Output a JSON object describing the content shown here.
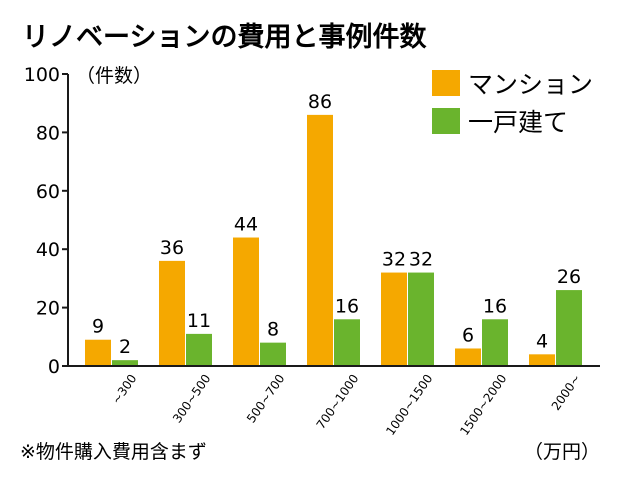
{
  "chart_data": {
    "type": "bar",
    "title": "リノベーションの費用と事例件数",
    "y_unit_label": "（件数）",
    "x_unit_label": "（万円）",
    "note": "※物件購入費用含まず",
    "categories": [
      "~300",
      "300~500",
      "500~700",
      "700~1000",
      "1000~1500",
      "1500~2000",
      "2000~"
    ],
    "series": [
      {
        "name": "マンション",
        "color": "#f5a800",
        "values": [
          9,
          36,
          44,
          86,
          32,
          6,
          4
        ]
      },
      {
        "name": "一戸建て",
        "color": "#6ab42d",
        "values": [
          2,
          11,
          8,
          16,
          32,
          16,
          26
        ]
      }
    ],
    "ylim": [
      0,
      100
    ],
    "yticks": [
      0,
      20,
      40,
      60,
      80,
      100
    ],
    "grid": false,
    "legend_position": "top-right"
  }
}
